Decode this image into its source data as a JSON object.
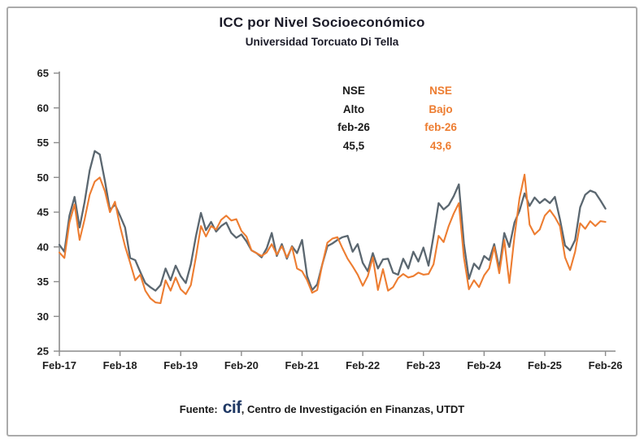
{
  "header": {
    "title": "ICC por Nivel Socioeconómico",
    "subtitle": "Universidad Torcuato Di Tella"
  },
  "annotations": {
    "alto": {
      "lines": [
        "NSE",
        "Alto",
        "feb-26",
        "45,5"
      ],
      "color": "#1a1a1a"
    },
    "bajo": {
      "lines": [
        "NSE",
        "Bajo",
        "feb-26",
        "43,6"
      ],
      "color": "#ED7D31"
    }
  },
  "footer": {
    "prefix": "Fuente:",
    "logo": "cif",
    "suffix": ", Centro de Investigación en Finanzas, UTDT"
  },
  "colors": {
    "nse_alto_line": "#5B6770",
    "nse_bajo_line": "#ED7D31",
    "axis": "#8c8c8c",
    "cif_logo": "#1F3864",
    "border": "#ababab"
  },
  "chart_data": {
    "type": "line",
    "title": "ICC por Nivel Socioeconómico",
    "subtitle": "Universidad Torcuato Di Tella",
    "grid": false,
    "legend_position": "none",
    "x_frequency": "monthly",
    "x_range": [
      "Feb-17",
      "Feb-26"
    ],
    "x_tick_labels": [
      "Feb-17",
      "Feb-18",
      "Feb-19",
      "Feb-20",
      "Feb-21",
      "Feb-22",
      "Feb-23",
      "Feb-24",
      "Feb-25",
      "Feb-26"
    ],
    "y_ticks": [
      25,
      30,
      35,
      40,
      45,
      50,
      55,
      60,
      65
    ],
    "ylim": [
      25,
      65
    ],
    "axis_color": "#8c8c8c",
    "last_values": {
      "nse_alto": "45,5",
      "nse_bajo": "43,6"
    },
    "series": [
      {
        "name": "NSE Alto",
        "slug": "nse-alto",
        "color": "#5B6770",
        "width": 2.3,
        "values": [
          40.3,
          39.3,
          44.5,
          47.2,
          42.8,
          46.5,
          51.0,
          53.8,
          53.3,
          49.5,
          45.3,
          46.1,
          44.5,
          42.8,
          38.4,
          38.1,
          36.4,
          34.8,
          34.2,
          33.7,
          34.5,
          36.9,
          35.2,
          37.3,
          35.8,
          34.8,
          37.5,
          41.5,
          44.9,
          42.4,
          43.6,
          42.2,
          43.0,
          43.5,
          42.0,
          41.3,
          41.8,
          40.8,
          39.5,
          39.1,
          38.5,
          39.8,
          42.0,
          38.7,
          40.4,
          38.3,
          40.1,
          39.1,
          41.0,
          35.8,
          33.8,
          34.6,
          37.5,
          40.1,
          40.5,
          41.0,
          41.4,
          41.6,
          39.3,
          40.4,
          37.7,
          36.5,
          39.1,
          36.9,
          38.2,
          38.3,
          36.3,
          36.0,
          38.3,
          36.9,
          39.3,
          37.9,
          39.9,
          37.3,
          41.6,
          46.3,
          45.4,
          46.0,
          47.3,
          49.0,
          40.5,
          35.4,
          37.6,
          36.8,
          38.7,
          38.1,
          40.4,
          36.9,
          42.0,
          40.0,
          43.5,
          45.2,
          47.7,
          45.9,
          47.1,
          46.3,
          46.9,
          46.3,
          47.2,
          44.0,
          40.2,
          39.5,
          41.0,
          45.7,
          47.5,
          48.1,
          47.8,
          46.7,
          45.5
        ]
      },
      {
        "name": "NSE Bajo",
        "slug": "nse-bajo",
        "color": "#ED7D31",
        "width": 2.1,
        "values": [
          39.2,
          38.4,
          43.5,
          46.1,
          41.0,
          44.0,
          47.5,
          49.4,
          50.0,
          48.0,
          45.0,
          46.5,
          43.0,
          40.1,
          37.7,
          35.2,
          36.0,
          33.7,
          32.6,
          32.0,
          31.9,
          35.2,
          33.7,
          35.6,
          33.9,
          33.2,
          34.5,
          38.5,
          43.0,
          41.5,
          43.0,
          42.5,
          43.9,
          44.5,
          43.8,
          44.0,
          42.3,
          41.5,
          39.5,
          39.1,
          38.7,
          39.2,
          40.4,
          38.9,
          40.1,
          38.5,
          40.0,
          36.9,
          36.5,
          35.2,
          33.4,
          33.8,
          37.5,
          40.6,
          41.2,
          41.4,
          39.8,
          38.3,
          37.2,
          36.0,
          34.4,
          35.8,
          38.5,
          33.8,
          36.8,
          33.7,
          34.2,
          35.5,
          36.1,
          35.6,
          35.8,
          36.3,
          36.0,
          36.1,
          37.5,
          41.6,
          40.7,
          43.0,
          44.8,
          46.3,
          38.5,
          33.9,
          35.2,
          34.2,
          35.9,
          36.9,
          40.0,
          36.2,
          41.0,
          34.8,
          41.5,
          47.0,
          50.4,
          43.2,
          41.8,
          42.5,
          44.5,
          45.3,
          44.3,
          43.0,
          38.5,
          36.7,
          39.3,
          43.4,
          42.6,
          43.7,
          43.0,
          43.7,
          43.6
        ]
      }
    ]
  }
}
